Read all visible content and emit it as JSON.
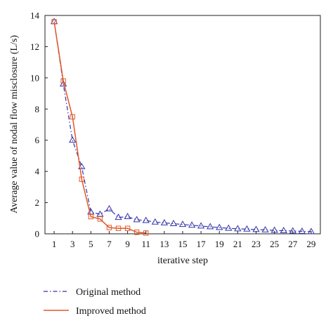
{
  "chart_data": {
    "type": "line",
    "xlabel": "iterative step",
    "ylabel": "Average value of nodal flow misclosure (L/s)",
    "xlim": [
      0,
      30
    ],
    "ylim": [
      0,
      14
    ],
    "x_ticks": [
      1,
      3,
      5,
      7,
      9,
      11,
      13,
      15,
      17,
      19,
      21,
      23,
      25,
      27,
      29
    ],
    "y_ticks": [
      0,
      2,
      4,
      6,
      8,
      10,
      12,
      14
    ],
    "grid": false,
    "legend_position": "below",
    "series": [
      {
        "name": "Original method",
        "color": "#3333aa",
        "line_style": "dash-dot",
        "marker": "triangle",
        "x": [
          1,
          2,
          3,
          4,
          5,
          6,
          7,
          8,
          9,
          10,
          11,
          12,
          13,
          14,
          15,
          16,
          17,
          18,
          19,
          20,
          21,
          22,
          23,
          24,
          25,
          26,
          27,
          28,
          29
        ],
        "values": [
          13.6,
          9.6,
          6.0,
          4.3,
          1.4,
          1.25,
          1.6,
          1.05,
          1.1,
          0.9,
          0.85,
          0.75,
          0.7,
          0.65,
          0.6,
          0.55,
          0.5,
          0.45,
          0.4,
          0.35,
          0.32,
          0.3,
          0.27,
          0.25,
          0.22,
          0.2,
          0.18,
          0.16,
          0.14
        ]
      },
      {
        "name": "Improved method",
        "color": "#e0582a",
        "line_style": "solid",
        "marker": "square",
        "x": [
          1,
          2,
          3,
          4,
          5,
          6,
          7,
          8,
          9,
          10,
          11
        ],
        "values": [
          13.6,
          9.8,
          7.5,
          3.5,
          1.1,
          0.95,
          0.4,
          0.35,
          0.35,
          0.1,
          0.05
        ]
      }
    ]
  }
}
